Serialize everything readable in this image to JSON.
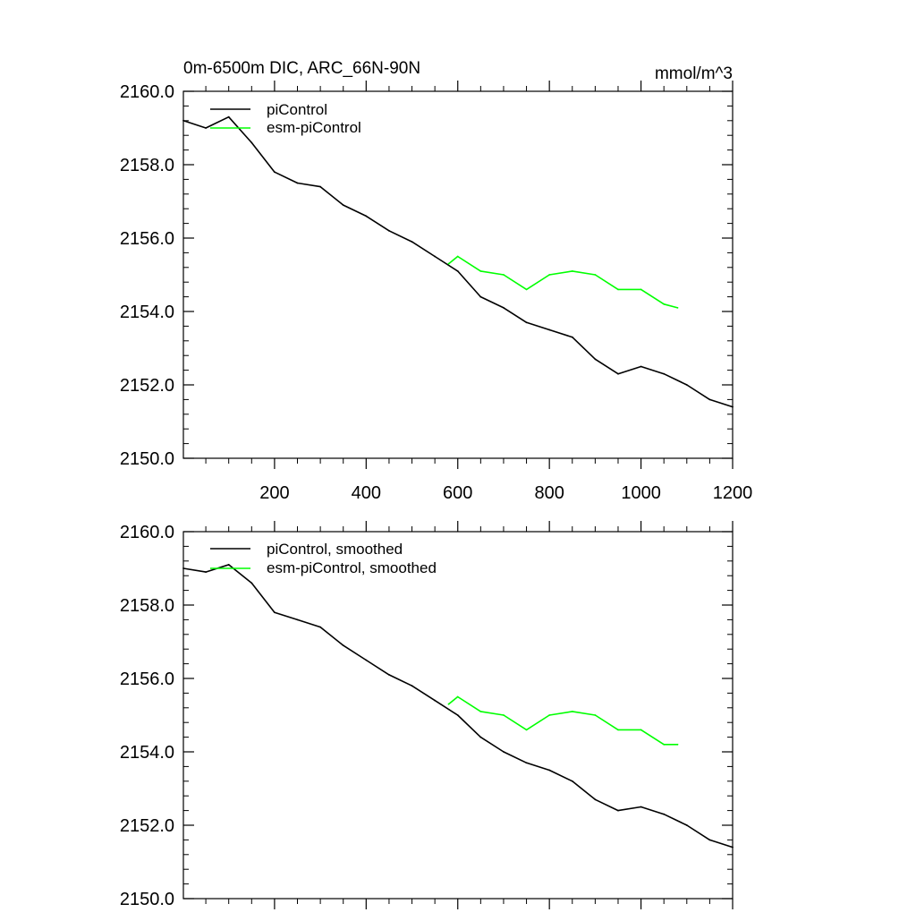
{
  "chart_data": [
    {
      "type": "line",
      "title": "0m-6500m DIC, ARC_66N-90N",
      "units": "mmol/m^3",
      "xlim": [
        1,
        1200
      ],
      "ylim": [
        2150.0,
        2160.0
      ],
      "xticks": [
        200,
        400,
        600,
        800,
        1000,
        1200
      ],
      "xtick_labels": [
        "200",
        "400",
        "600",
        "800",
        "1000",
        "1200"
      ],
      "yticks": [
        2150.0,
        2152.0,
        2154.0,
        2156.0,
        2158.0,
        2160.0
      ],
      "ytick_labels": [
        "2150.0",
        "2152.0",
        "2154.0",
        "2156.0",
        "2158.0",
        "2160.0"
      ],
      "legend_position": "top-left",
      "series": [
        {
          "name": "piControl",
          "color": "#000000",
          "x": [
            1,
            50,
            100,
            150,
            200,
            250,
            300,
            350,
            400,
            450,
            500,
            550,
            600,
            650,
            700,
            750,
            800,
            850,
            900,
            950,
            1000,
            1050,
            1100,
            1150,
            1200
          ],
          "values": [
            2159.2,
            2159.0,
            2159.3,
            2158.6,
            2157.8,
            2157.5,
            2157.4,
            2156.9,
            2156.6,
            2156.2,
            2155.9,
            2155.5,
            2155.1,
            2154.4,
            2154.1,
            2153.7,
            2153.5,
            2153.3,
            2152.7,
            2152.3,
            2152.5,
            2152.3,
            2152.0,
            2151.6,
            2151.4
          ]
        },
        {
          "name": "esm-piControl",
          "color": "#00ff00",
          "x": [
            580,
            600,
            650,
            700,
            750,
            800,
            850,
            900,
            950,
            1000,
            1050,
            1080
          ],
          "values": [
            2155.3,
            2155.5,
            2155.1,
            2155.0,
            2154.6,
            2155.0,
            2155.1,
            2155.0,
            2154.6,
            2154.6,
            2154.2,
            2154.1
          ]
        }
      ]
    },
    {
      "type": "line",
      "title": "",
      "xlim": [
        1,
        1200
      ],
      "ylim": [
        2150.0,
        2160.0
      ],
      "yticks": [
        2150.0,
        2152.0,
        2154.0,
        2156.0,
        2158.0,
        2160.0
      ],
      "ytick_labels": [
        "2150.0",
        "2152.0",
        "2154.0",
        "2156.0",
        "2158.0",
        "2160.0"
      ],
      "legend_position": "top-left",
      "series": [
        {
          "name": "piControl, smoothed",
          "color": "#000000",
          "x": [
            1,
            50,
            100,
            150,
            200,
            250,
            300,
            350,
            400,
            450,
            500,
            550,
            600,
            650,
            700,
            750,
            800,
            850,
            900,
            950,
            1000,
            1050,
            1100,
            1150,
            1200
          ],
          "values": [
            2159.0,
            2158.9,
            2159.1,
            2158.6,
            2157.8,
            2157.6,
            2157.4,
            2156.9,
            2156.5,
            2156.1,
            2155.8,
            2155.4,
            2155.0,
            2154.4,
            2154.0,
            2153.7,
            2153.5,
            2153.2,
            2152.7,
            2152.4,
            2152.5,
            2152.3,
            2152.0,
            2151.6,
            2151.4
          ]
        },
        {
          "name": "esm-piControl, smoothed",
          "color": "#00ff00",
          "x": [
            580,
            600,
            650,
            700,
            750,
            800,
            850,
            900,
            950,
            1000,
            1050,
            1080
          ],
          "values": [
            2155.3,
            2155.5,
            2155.1,
            2155.0,
            2154.6,
            2155.0,
            2155.1,
            2155.0,
            2154.6,
            2154.6,
            2154.2,
            2154.2
          ]
        }
      ]
    }
  ]
}
